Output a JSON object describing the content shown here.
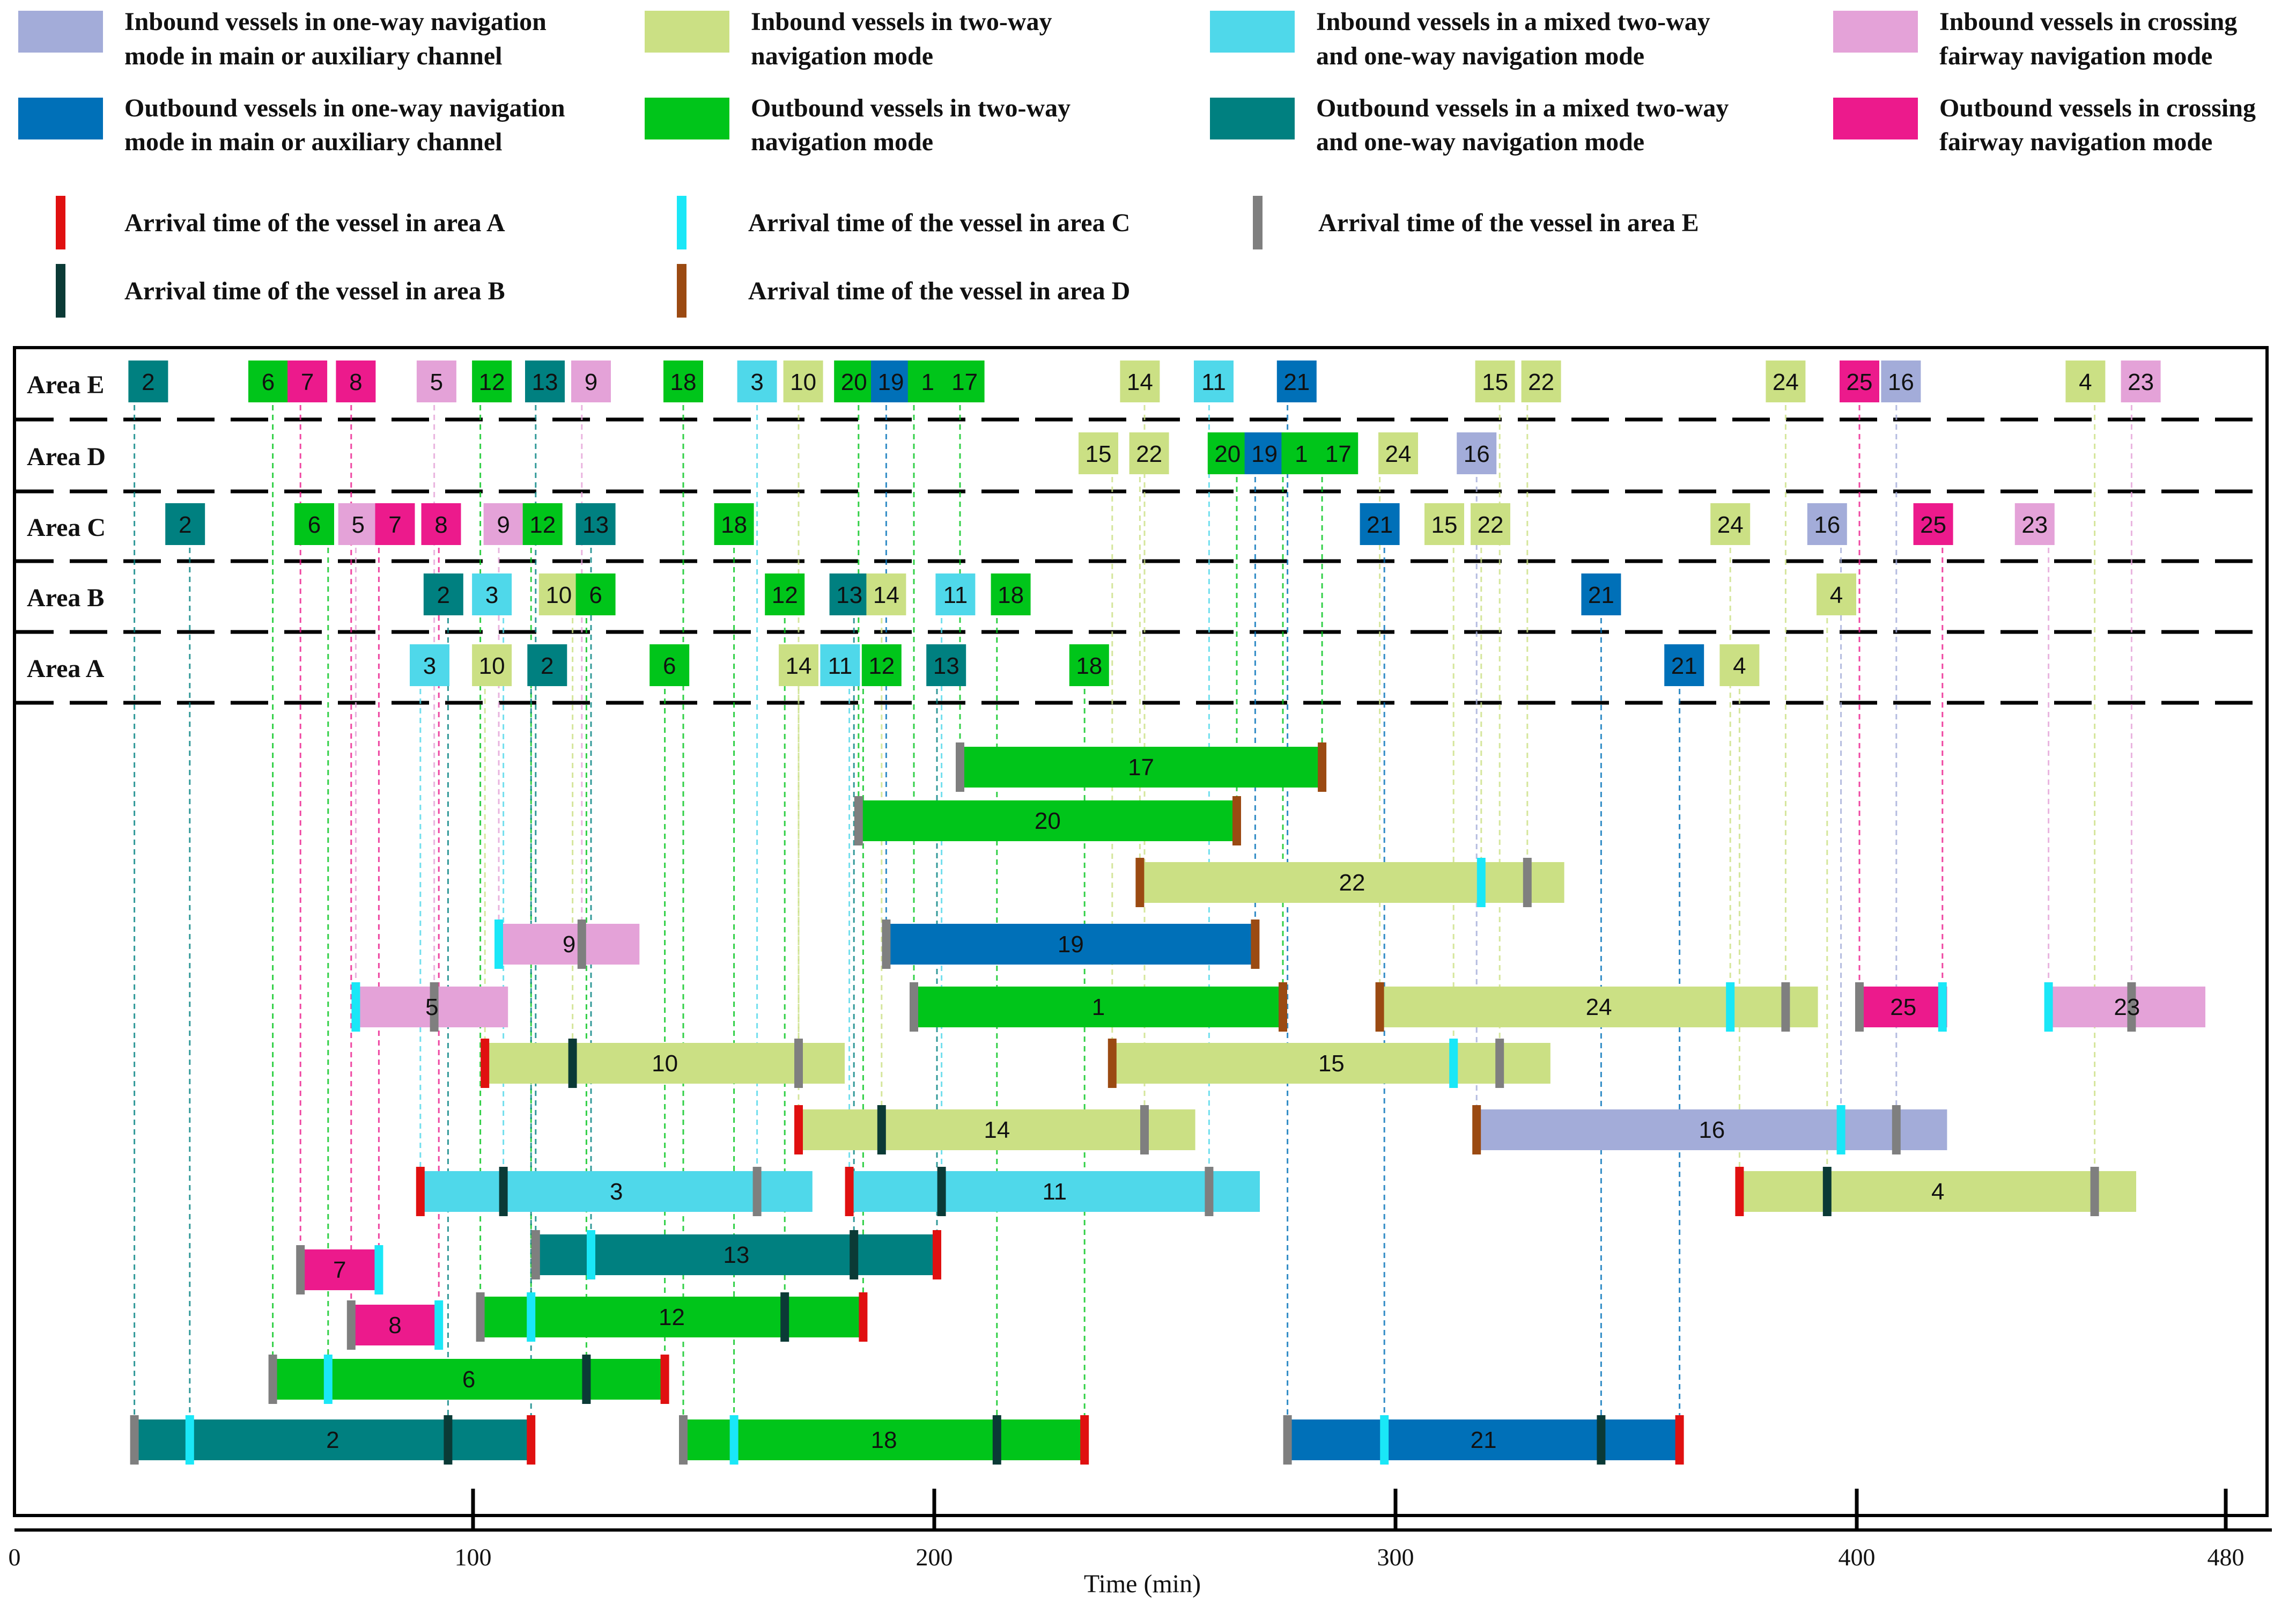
{
  "colors": {
    "in_oneway": "#a3acd9",
    "out_oneway": "#0070b8",
    "in_twoway": "#cbe084",
    "out_twoway": "#00c51a",
    "in_mixed": "#4fd8ea",
    "out_mixed": "#008080",
    "in_crossing": "#e4a2d8",
    "out_crossing": "#ec1a8c",
    "marker_A": "#e01010",
    "marker_B": "#0b3a36",
    "marker_C": "#1ae7f7",
    "marker_D": "#9b4a12",
    "marker_E": "#7f7f7f"
  },
  "legend": {
    "modes": [
      {
        "key": "in_oneway",
        "line1": "Inbound vessels in one-way navigation",
        "line2": "mode in main or auxiliary channel"
      },
      {
        "key": "in_twoway",
        "line1": "Inbound vessels in two-way",
        "line2": "navigation mode"
      },
      {
        "key": "in_mixed",
        "line1": "Inbound vessels in a mixed two-way",
        "line2": "and one-way navigation mode"
      },
      {
        "key": "in_crossing",
        "line1": "Inbound vessels in crossing",
        "line2": "fairway navigation mode"
      },
      {
        "key": "out_oneway",
        "line1": "Outbound vessels in one-way navigation",
        "line2": "mode in main or auxiliary channel"
      },
      {
        "key": "out_twoway",
        "line1": "Outbound vessels in two-way",
        "line2": "navigation mode"
      },
      {
        "key": "out_mixed",
        "line1": "Outbound vessels in a mixed two-way",
        "line2": "and one-way navigation mode"
      },
      {
        "key": "out_crossing",
        "line1": "Outbound vessels in crossing",
        "line2": "fairway navigation mode"
      }
    ],
    "arrivals": [
      {
        "key": "marker_A",
        "label": "Arrival time of the vessel in area A"
      },
      {
        "key": "marker_C",
        "label": "Arrival time of the vessel in area C"
      },
      {
        "key": "marker_E",
        "label": "Arrival time of the vessel in area E"
      },
      {
        "key": "marker_B",
        "label": "Arrival time of the vessel in area B"
      },
      {
        "key": "marker_D",
        "label": "Arrival time of the vessel in area D"
      }
    ]
  },
  "chart_data": {
    "type": "gantt",
    "xlabel": "Time (min)",
    "xlim": [
      0,
      490
    ],
    "xticks": [
      0,
      100,
      200,
      300,
      400,
      480
    ],
    "areas": [
      "Area E",
      "Area D",
      "Area C",
      "Area B",
      "Area A"
    ],
    "area_occupancy": {
      "Area E": [
        {
          "v": "2",
          "t": 29,
          "m": "out_mixed"
        },
        {
          "v": "6",
          "t": 55,
          "m": "out_twoway"
        },
        {
          "v": "7",
          "t": 63.5,
          "m": "out_crossing"
        },
        {
          "v": "8",
          "t": 74,
          "m": "out_crossing"
        },
        {
          "v": "5",
          "t": 91.5,
          "m": "in_crossing"
        },
        {
          "v": "12",
          "t": 103.5,
          "m": "out_twoway"
        },
        {
          "v": "13",
          "t": 115,
          "m": "out_mixed"
        },
        {
          "v": "9",
          "t": 125,
          "m": "in_crossing"
        },
        {
          "v": "18",
          "t": 145,
          "m": "out_twoway"
        },
        {
          "v": "3",
          "t": 161,
          "m": "in_mixed"
        },
        {
          "v": "10",
          "t": 171,
          "m": "in_twoway"
        },
        {
          "v": "20",
          "t": 182,
          "m": "out_twoway"
        },
        {
          "v": "19",
          "t": 190,
          "m": "out_oneway"
        },
        {
          "v": "1",
          "t": 198,
          "m": "out_twoway"
        },
        {
          "v": "17",
          "t": 206,
          "m": "out_twoway"
        },
        {
          "v": "14",
          "t": 244,
          "m": "in_twoway"
        },
        {
          "v": "11",
          "t": 260,
          "m": "in_mixed"
        },
        {
          "v": "21",
          "t": 278,
          "m": "out_oneway"
        },
        {
          "v": "15",
          "t": 321,
          "m": "in_twoway"
        },
        {
          "v": "22",
          "t": 331,
          "m": "in_twoway"
        },
        {
          "v": "24",
          "t": 384,
          "m": "in_twoway"
        },
        {
          "v": "25",
          "t": 400,
          "m": "out_crossing"
        },
        {
          "v": "16",
          "t": 409,
          "m": "in_oneway"
        },
        {
          "v": "4",
          "t": 449,
          "m": "in_twoway"
        },
        {
          "v": "23",
          "t": 461,
          "m": "in_crossing"
        }
      ],
      "Area D": [
        {
          "v": "15",
          "t": 235,
          "m": "in_twoway"
        },
        {
          "v": "22",
          "t": 246,
          "m": "in_twoway"
        },
        {
          "v": "20",
          "t": 263,
          "m": "out_twoway"
        },
        {
          "v": "19",
          "t": 271,
          "m": "out_oneway"
        },
        {
          "v": "1",
          "t": 279,
          "m": "out_twoway"
        },
        {
          "v": "17",
          "t": 287,
          "m": "out_twoway"
        },
        {
          "v": "24",
          "t": 300,
          "m": "in_twoway"
        },
        {
          "v": "16",
          "t": 317,
          "m": "in_oneway"
        }
      ],
      "Area C": [
        {
          "v": "2",
          "t": 37,
          "m": "out_mixed"
        },
        {
          "v": "6",
          "t": 65,
          "m": "out_twoway"
        },
        {
          "v": "5",
          "t": 74.5,
          "m": "in_crossing"
        },
        {
          "v": "7",
          "t": 82.5,
          "m": "out_crossing"
        },
        {
          "v": "8",
          "t": 92.5,
          "m": "out_crossing"
        },
        {
          "v": "9",
          "t": 106,
          "m": "in_crossing"
        },
        {
          "v": "12",
          "t": 114.5,
          "m": "out_twoway"
        },
        {
          "v": "13",
          "t": 126,
          "m": "out_mixed"
        },
        {
          "v": "18",
          "t": 156,
          "m": "out_twoway"
        },
        {
          "v": "21",
          "t": 296,
          "m": "out_oneway"
        },
        {
          "v": "15",
          "t": 310,
          "m": "in_twoway"
        },
        {
          "v": "22",
          "t": 320,
          "m": "in_twoway"
        },
        {
          "v": "24",
          "t": 372,
          "m": "in_twoway"
        },
        {
          "v": "16",
          "t": 393,
          "m": "in_oneway"
        },
        {
          "v": "25",
          "t": 416,
          "m": "out_crossing"
        },
        {
          "v": "23",
          "t": 438,
          "m": "in_crossing"
        }
      ],
      "Area B": [
        {
          "v": "2",
          "t": 93,
          "m": "out_mixed"
        },
        {
          "v": "3",
          "t": 103.5,
          "m": "in_mixed"
        },
        {
          "v": "10",
          "t": 118,
          "m": "in_twoway"
        },
        {
          "v": "6",
          "t": 126,
          "m": "out_twoway"
        },
        {
          "v": "12",
          "t": 167,
          "m": "out_twoway"
        },
        {
          "v": "13",
          "t": 181,
          "m": "out_mixed"
        },
        {
          "v": "14",
          "t": 189,
          "m": "in_twoway"
        },
        {
          "v": "11",
          "t": 204,
          "m": "in_mixed"
        },
        {
          "v": "18",
          "t": 216,
          "m": "out_twoway"
        },
        {
          "v": "21",
          "t": 344,
          "m": "out_oneway"
        },
        {
          "v": "4",
          "t": 395,
          "m": "in_twoway"
        }
      ],
      "Area A": [
        {
          "v": "3",
          "t": 90,
          "m": "in_mixed"
        },
        {
          "v": "10",
          "t": 103.5,
          "m": "in_twoway"
        },
        {
          "v": "2",
          "t": 115.5,
          "m": "out_mixed"
        },
        {
          "v": "6",
          "t": 142,
          "m": "out_twoway"
        },
        {
          "v": "14",
          "t": 170,
          "m": "in_twoway"
        },
        {
          "v": "11",
          "t": 179,
          "m": "in_mixed"
        },
        {
          "v": "12",
          "t": 188,
          "m": "out_twoway"
        },
        {
          "v": "13",
          "t": 202,
          "m": "out_mixed"
        },
        {
          "v": "18",
          "t": 233,
          "m": "out_twoway"
        },
        {
          "v": "21",
          "t": 362,
          "m": "out_oneway"
        },
        {
          "v": "4",
          "t": 374,
          "m": "in_twoway"
        }
      ]
    },
    "vessels": [
      {
        "id": "17",
        "m": "out_twoway",
        "start": 205,
        "end": 283.5,
        "marks": [
          {
            "a": "E",
            "t": 205
          },
          {
            "a": "D",
            "t": 283.5
          }
        ]
      },
      {
        "id": "20",
        "m": "out_twoway",
        "start": 183,
        "end": 265,
        "marks": [
          {
            "a": "E",
            "t": 183
          },
          {
            "a": "D",
            "t": 265
          }
        ]
      },
      {
        "id": "22",
        "m": "in_twoway",
        "start": 244,
        "end": 336,
        "marks": [
          {
            "a": "D",
            "t": 244
          },
          {
            "a": "C",
            "t": 318
          },
          {
            "a": "E",
            "t": 328
          }
        ]
      },
      {
        "id": "9",
        "m": "in_crossing",
        "start": 105,
        "end": 135.5,
        "marks": [
          {
            "a": "C",
            "t": 105
          },
          {
            "a": "E",
            "t": 123
          }
        ]
      },
      {
        "id": "19",
        "m": "out_oneway",
        "start": 189,
        "end": 269,
        "marks": [
          {
            "a": "E",
            "t": 189
          },
          {
            "a": "D",
            "t": 269
          }
        ]
      },
      {
        "id": "5",
        "m": "in_crossing",
        "start": 74,
        "end": 107,
        "marks": [
          {
            "a": "C",
            "t": 74
          },
          {
            "a": "E",
            "t": 91
          }
        ]
      },
      {
        "id": "1",
        "m": "out_twoway",
        "start": 195,
        "end": 275,
        "marks": [
          {
            "a": "E",
            "t": 195
          },
          {
            "a": "D",
            "t": 275
          }
        ]
      },
      {
        "id": "24",
        "m": "in_twoway",
        "start": 296,
        "end": 391,
        "marks": [
          {
            "a": "D",
            "t": 296
          },
          {
            "a": "C",
            "t": 372
          },
          {
            "a": "E",
            "t": 384
          }
        ]
      },
      {
        "id": "25",
        "m": "out_crossing",
        "start": 400,
        "end": 419,
        "marks": [
          {
            "a": "E",
            "t": 400
          },
          {
            "a": "C",
            "t": 418
          }
        ]
      },
      {
        "id": "23",
        "m": "in_crossing",
        "start": 441,
        "end": 475,
        "marks": [
          {
            "a": "C",
            "t": 441
          },
          {
            "a": "E",
            "t": 459
          }
        ]
      },
      {
        "id": "10",
        "m": "in_twoway",
        "start": 102,
        "end": 180,
        "marks": [
          {
            "a": "A",
            "t": 102
          },
          {
            "a": "B",
            "t": 121
          },
          {
            "a": "E",
            "t": 170
          }
        ]
      },
      {
        "id": "15",
        "m": "in_twoway",
        "start": 238,
        "end": 333,
        "marks": [
          {
            "a": "D",
            "t": 238
          },
          {
            "a": "C",
            "t": 312
          },
          {
            "a": "E",
            "t": 322
          }
        ]
      },
      {
        "id": "14",
        "m": "in_twoway",
        "start": 170,
        "end": 256,
        "marks": [
          {
            "a": "A",
            "t": 170
          },
          {
            "a": "B",
            "t": 188
          },
          {
            "a": "E",
            "t": 245
          }
        ]
      },
      {
        "id": "16",
        "m": "in_oneway",
        "start": 317,
        "end": 419,
        "marks": [
          {
            "a": "D",
            "t": 317
          },
          {
            "a": "C",
            "t": 396
          },
          {
            "a": "E",
            "t": 408
          }
        ]
      },
      {
        "id": "3",
        "m": "in_mixed",
        "start": 88,
        "end": 173,
        "marks": [
          {
            "a": "A",
            "t": 88
          },
          {
            "a": "B",
            "t": 106
          },
          {
            "a": "E",
            "t": 161
          }
        ]
      },
      {
        "id": "11",
        "m": "in_mixed",
        "start": 181,
        "end": 270,
        "marks": [
          {
            "a": "A",
            "t": 181
          },
          {
            "a": "B",
            "t": 201
          },
          {
            "a": "E",
            "t": 259
          }
        ]
      },
      {
        "id": "4",
        "m": "in_twoway",
        "start": 374,
        "end": 460,
        "marks": [
          {
            "a": "A",
            "t": 374
          },
          {
            "a": "B",
            "t": 393
          },
          {
            "a": "E",
            "t": 451
          }
        ]
      },
      {
        "id": "13",
        "m": "out_mixed",
        "start": 113,
        "end": 200,
        "marks": [
          {
            "a": "E",
            "t": 113
          },
          {
            "a": "C",
            "t": 125
          },
          {
            "a": "B",
            "t": 182
          },
          {
            "a": "A",
            "t": 200
          }
        ]
      },
      {
        "id": "7",
        "m": "out_crossing",
        "start": 62,
        "end": 79,
        "marks": [
          {
            "a": "E",
            "t": 62
          },
          {
            "a": "C",
            "t": 79
          }
        ]
      },
      {
        "id": "12",
        "m": "out_twoway",
        "start": 101,
        "end": 184,
        "marks": [
          {
            "a": "E",
            "t": 101
          },
          {
            "a": "C",
            "t": 112
          },
          {
            "a": "B",
            "t": 167
          },
          {
            "a": "A",
            "t": 184
          }
        ]
      },
      {
        "id": "8",
        "m": "out_crossing",
        "start": 73,
        "end": 92,
        "marks": [
          {
            "a": "E",
            "t": 73
          },
          {
            "a": "C",
            "t": 92
          }
        ]
      },
      {
        "id": "6",
        "m": "out_twoway",
        "start": 56,
        "end": 141,
        "marks": [
          {
            "a": "E",
            "t": 56
          },
          {
            "a": "C",
            "t": 68
          },
          {
            "a": "B",
            "t": 124
          },
          {
            "a": "A",
            "t": 141
          }
        ]
      },
      {
        "id": "2",
        "m": "out_mixed",
        "start": 26,
        "end": 112,
        "marks": [
          {
            "a": "E",
            "t": 26
          },
          {
            "a": "C",
            "t": 38
          },
          {
            "a": "B",
            "t": 94
          },
          {
            "a": "A",
            "t": 112
          }
        ]
      },
      {
        "id": "18",
        "m": "out_twoway",
        "start": 145,
        "end": 232,
        "marks": [
          {
            "a": "E",
            "t": 145
          },
          {
            "a": "C",
            "t": 156
          },
          {
            "a": "B",
            "t": 213
          },
          {
            "a": "A",
            "t": 232
          }
        ]
      },
      {
        "id": "21",
        "m": "out_oneway",
        "start": 276,
        "end": 361,
        "marks": [
          {
            "a": "E",
            "t": 276
          },
          {
            "a": "C",
            "t": 297
          },
          {
            "a": "B",
            "t": 344
          },
          {
            "a": "A",
            "t": 361
          }
        ]
      }
    ]
  }
}
